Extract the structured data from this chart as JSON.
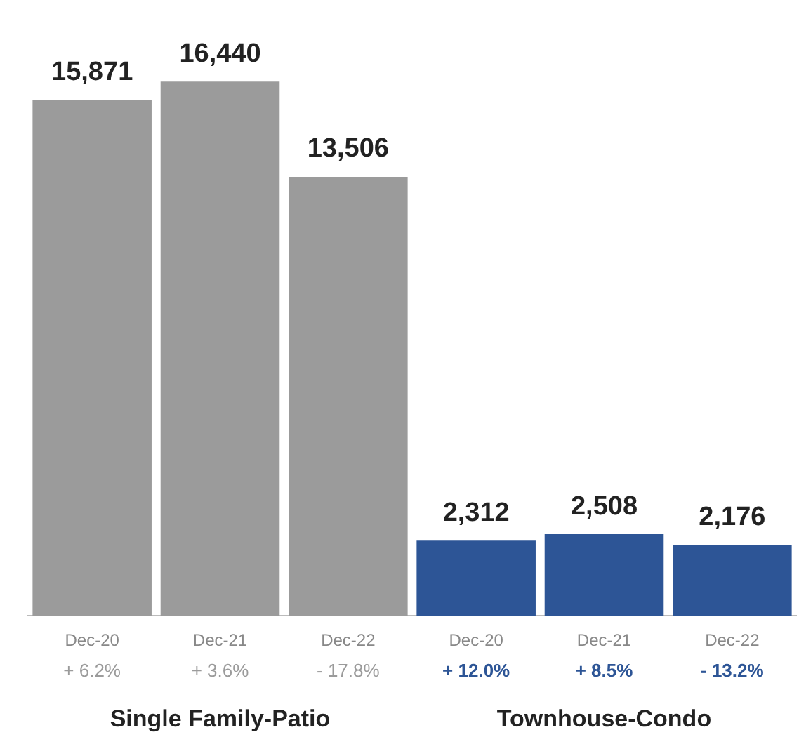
{
  "chart_data": {
    "type": "bar",
    "categories": [
      "Dec-20",
      "Dec-21",
      "Dec-22",
      "Dec-20",
      "Dec-21",
      "Dec-22"
    ],
    "values": [
      15871,
      16440,
      13506,
      2312,
      2508,
      2176
    ],
    "colors": [
      "#9b9b9b",
      "#9b9b9b",
      "#9b9b9b",
      "#2d5596",
      "#2d5596",
      "#2d5596"
    ],
    "value_labels": [
      "15,871",
      "16,440",
      "13,506",
      "2,312",
      "2,508",
      "2,176"
    ],
    "annotations": [
      "+ 6.2%",
      "+ 3.6%",
      "- 17.8%",
      "+ 12.0%",
      "+ 8.5%",
      "- 13.2%",
      "Single Family-Patio",
      "Townhouse-Condo"
    ]
  }
}
